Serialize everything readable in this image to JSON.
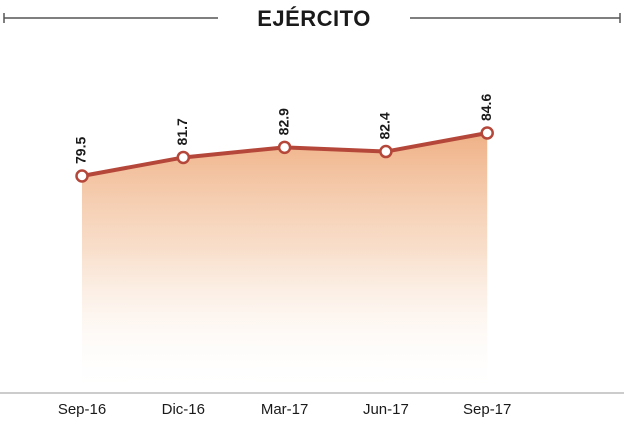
{
  "chart_data": {
    "type": "line",
    "title": "EJÉRCITO",
    "categories": [
      "Sep-16",
      "Dic-16",
      "Mar-17",
      "Jun-17",
      "Sep-17"
    ],
    "values": [
      79.5,
      81.7,
      82.9,
      82.4,
      84.6
    ],
    "color": "#b5473a"
  }
}
